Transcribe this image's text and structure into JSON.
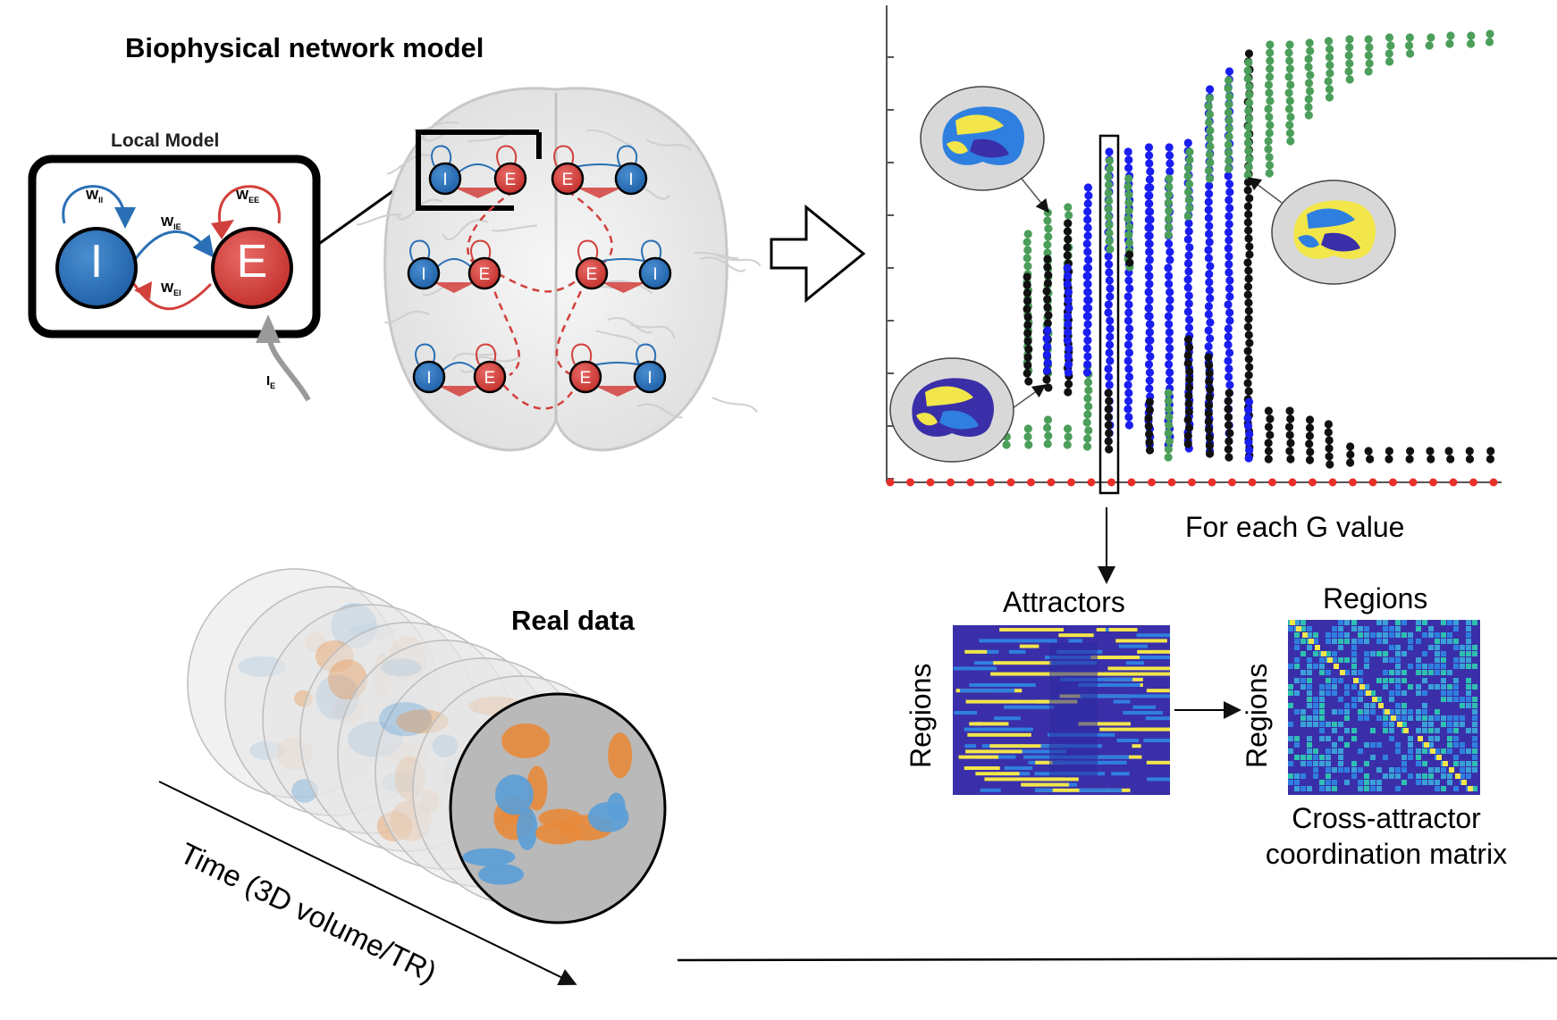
{
  "panels": {
    "model": {
      "title": "Biophysical network model",
      "local_model_title": "Local Model",
      "node_inhibitory": "I",
      "node_excitatory": "E",
      "weight_ii": "W",
      "weight_ii_sub": "II",
      "weight_ee": "W",
      "weight_ee_sub": "EE",
      "weight_ie": "W",
      "weight_ie_sub": "IE",
      "weight_ei": "W",
      "weight_ei_sub": "EI",
      "input": "I",
      "input_sub": "E"
    },
    "real_data": {
      "title": "Real data",
      "time_axis_label": "Time (3D volume/TR)"
    },
    "bifurcation": {
      "g_caption": "For each G value"
    },
    "attractors": {
      "title": "Attractors",
      "ylabel": "Regions"
    },
    "coordination": {
      "title": "Regions",
      "ylabel": "Regions",
      "caption_line1": "Cross-attractor",
      "caption_line2": "coordination matrix"
    }
  },
  "colors": {
    "inhibitory": "#2a6fb5",
    "excitatory": "#d2403c",
    "green": "#4c9f5a",
    "blue": "#1a1ef0",
    "black": "#111111",
    "red_axis": "#e8302a",
    "matrix_bg": "#3a2fa8",
    "matrix_yellow": "#f2e64a",
    "matrix_blue": "#2f7fe0"
  },
  "icons": [
    "right-arrow-icon",
    "brain-icon"
  ]
}
